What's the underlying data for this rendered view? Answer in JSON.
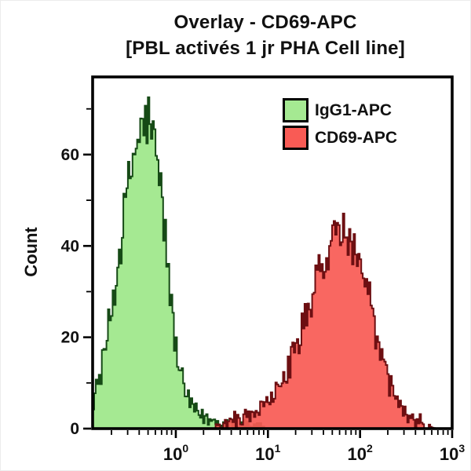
{
  "title": {
    "line1": "Overlay - CD69-APC",
    "line2": "[PBL activés 1 jr PHA Cell line]"
  },
  "y_axis": {
    "label": "Count",
    "min": 0,
    "max": 77,
    "major_ticks": [
      0,
      20,
      40,
      60
    ],
    "minor_ticks": [
      10,
      30,
      50,
      70
    ]
  },
  "x_axis": {
    "scale": "log",
    "min": 0.125,
    "max": 1000,
    "major_tick_values": [
      1,
      10,
      100,
      1000
    ],
    "tick_label_base": "10",
    "tick_label_exponents": [
      0,
      1,
      2,
      3
    ]
  },
  "legend": {
    "items": [
      {
        "label": "IgG1-APC",
        "fill": "#a5e992",
        "border": "#000000"
      },
      {
        "label": "CD69-APC",
        "fill": "#f95b55",
        "border": "#000000"
      }
    ]
  },
  "colors": {
    "background": "#ffffff",
    "frame": "#000000",
    "text": "#111111"
  },
  "chart_data": {
    "type": "area",
    "subtype": "flow-cytometry-histogram-overlay",
    "title": "Overlay - CD69-APC [PBL activés 1 jr PHA Cell line]",
    "xlabel": "",
    "ylabel": "Count",
    "x_scale": "log",
    "xlim": [
      0.125,
      1000
    ],
    "ylim": [
      0,
      77
    ],
    "grid": false,
    "legend_position": "top-right-inside",
    "series": [
      {
        "name": "IgG1-APC",
        "fill": "#a5e992",
        "stroke": "#164a16",
        "points": [
          [
            0.125,
            6
          ],
          [
            0.14,
            9
          ],
          [
            0.16,
            14
          ],
          [
            0.18,
            20
          ],
          [
            0.2,
            26
          ],
          [
            0.23,
            34
          ],
          [
            0.26,
            43
          ],
          [
            0.3,
            52
          ],
          [
            0.35,
            60
          ],
          [
            0.4,
            64
          ],
          [
            0.45,
            66
          ],
          [
            0.5,
            68
          ],
          [
            0.56,
            64
          ],
          [
            0.63,
            58
          ],
          [
            0.71,
            50
          ],
          [
            0.8,
            38
          ],
          [
            0.9,
            26
          ],
          [
            1.0,
            18
          ],
          [
            1.12,
            12
          ],
          [
            1.26,
            8
          ],
          [
            1.41,
            5.5
          ],
          [
            1.6,
            4
          ],
          [
            1.8,
            3
          ],
          [
            2.2,
            2
          ],
          [
            2.8,
            1.5
          ],
          [
            3.5,
            1.2
          ],
          [
            4.5,
            1
          ],
          [
            5.6,
            0.8
          ],
          [
            7.0,
            0.5
          ],
          [
            8.5,
            0.3
          ],
          [
            9.5,
            0
          ]
        ]
      },
      {
        "name": "CD69-APC",
        "fill": "#f95b55",
        "stroke": "#6d0f12",
        "points": [
          [
            2.5,
            0
          ],
          [
            3.2,
            0.6
          ],
          [
            4.0,
            1.2
          ],
          [
            5.0,
            2
          ],
          [
            6.3,
            3
          ],
          [
            8.0,
            4
          ],
          [
            10,
            5.5
          ],
          [
            12.6,
            8
          ],
          [
            15.8,
            12
          ],
          [
            20,
            17
          ],
          [
            25,
            23
          ],
          [
            32,
            30
          ],
          [
            40,
            37
          ],
          [
            50,
            42
          ],
          [
            56,
            44
          ],
          [
            63,
            43
          ],
          [
            79,
            40
          ],
          [
            100,
            34
          ],
          [
            126,
            26
          ],
          [
            158,
            18
          ],
          [
            200,
            11
          ],
          [
            251,
            6
          ],
          [
            316,
            3
          ],
          [
            400,
            1.2
          ],
          [
            500,
            0.4
          ],
          [
            700,
            0
          ]
        ]
      }
    ],
    "render_hints": {
      "noise": true,
      "bins": 235,
      "seeds": [
        12345,
        98765
      ]
    }
  }
}
